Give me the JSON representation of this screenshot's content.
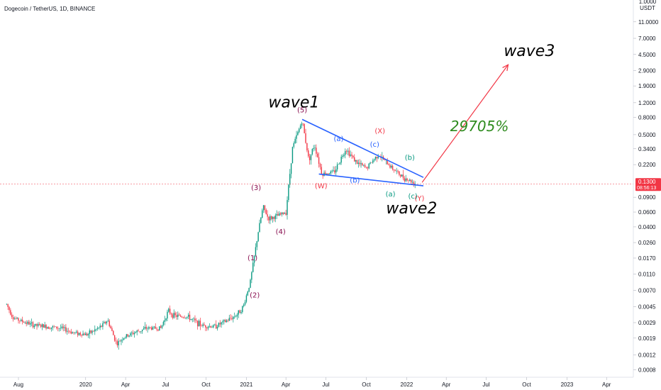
{
  "title": "Dogecoin / TetherUS, 1D, BINANCE",
  "chart_data": {
    "type": "candlestick",
    "title": "Dogecoin / TetherUS, 1D, BINANCE",
    "y_scale": "log",
    "ylim": [
      0.00065,
      20
    ],
    "xlim": [
      "2019-06-20",
      "2023-06-01"
    ],
    "price_axis": {
      "unit_labels": [
        "1.0000",
        "USDT"
      ],
      "ticks": [
        {
          "value": 11.0,
          "label": "11.0000"
        },
        {
          "value": 7.0,
          "label": "7.0000"
        },
        {
          "value": 4.5,
          "label": "4.5000"
        },
        {
          "value": 2.9,
          "label": "2.9000"
        },
        {
          "value": 1.9,
          "label": "1.9000"
        },
        {
          "value": 1.2,
          "label": "1.2000"
        },
        {
          "value": 0.8,
          "label": "0.8000"
        },
        {
          "value": 0.5,
          "label": "0.5000"
        },
        {
          "value": 0.34,
          "label": "0.3400"
        },
        {
          "value": 0.22,
          "label": "0.2200"
        },
        {
          "value": 0.09,
          "label": "0.0900"
        },
        {
          "value": 0.06,
          "label": "0.0600"
        },
        {
          "value": 0.04,
          "label": "0.0400"
        },
        {
          "value": 0.026,
          "label": "0.0260"
        },
        {
          "value": 0.017,
          "label": "0.0170"
        },
        {
          "value": 0.011,
          "label": "0.0110"
        },
        {
          "value": 0.007,
          "label": "0.0070"
        },
        {
          "value": 0.0045,
          "label": "0.0045"
        },
        {
          "value": 0.0029,
          "label": "0.0029"
        },
        {
          "value": 0.0019,
          "label": "0.0019"
        },
        {
          "value": 0.0012,
          "label": "0.0012"
        },
        {
          "value": 0.0008,
          "label": "0.0008"
        }
      ]
    },
    "time_axis": {
      "ticks": [
        {
          "date": "2019-08-01",
          "label": "Aug"
        },
        {
          "date": "2020-01-01",
          "label": "2020"
        },
        {
          "date": "2020-04-01",
          "label": "Apr"
        },
        {
          "date": "2020-07-01",
          "label": "Jul"
        },
        {
          "date": "2020-10-01",
          "label": "Oct"
        },
        {
          "date": "2021-01-01",
          "label": "2021"
        },
        {
          "date": "2021-04-01",
          "label": "Apr"
        },
        {
          "date": "2021-07-01",
          "label": "Jul"
        },
        {
          "date": "2021-10-01",
          "label": "Oct"
        },
        {
          "date": "2022-01-01",
          "label": "2022"
        },
        {
          "date": "2022-04-01",
          "label": "Apr"
        },
        {
          "date": "2022-07-01",
          "label": "Jul"
        },
        {
          "date": "2022-10-01",
          "label": "Oct"
        },
        {
          "date": "2023-01-01",
          "label": "2023"
        },
        {
          "date": "2023-04-01",
          "label": "Apr"
        }
      ]
    },
    "last_price": {
      "value": 0.13,
      "label": "0.1300",
      "countdown": "08:56:13",
      "color": "#f23645"
    },
    "price_path": [
      [
        "2019-07-05",
        0.0048
      ],
      [
        "2019-07-20",
        0.0033
      ],
      [
        "2019-08-10",
        0.003
      ],
      [
        "2019-09-05",
        0.0027
      ],
      [
        "2019-10-05",
        0.0026
      ],
      [
        "2019-11-05",
        0.0025
      ],
      [
        "2019-12-05",
        0.0022
      ],
      [
        "2020-01-05",
        0.0021
      ],
      [
        "2020-02-05",
        0.0026
      ],
      [
        "2020-02-20",
        0.0031
      ],
      [
        "2020-03-12",
        0.0016
      ],
      [
        "2020-03-25",
        0.0019
      ],
      [
        "2020-04-20",
        0.0022
      ],
      [
        "2020-05-20",
        0.0025
      ],
      [
        "2020-06-20",
        0.0025
      ],
      [
        "2020-07-07",
        0.004
      ],
      [
        "2020-07-20",
        0.0035
      ],
      [
        "2020-08-20",
        0.0034
      ],
      [
        "2020-09-20",
        0.0027
      ],
      [
        "2020-10-20",
        0.0026
      ],
      [
        "2020-11-15",
        0.003
      ],
      [
        "2020-12-10",
        0.0036
      ],
      [
        "2020-12-25",
        0.0045
      ],
      [
        "2021-01-10",
        0.009
      ],
      [
        "2021-01-28",
        0.035
      ],
      [
        "2021-02-08",
        0.07
      ],
      [
        "2021-02-20",
        0.05
      ],
      [
        "2021-03-10",
        0.053
      ],
      [
        "2021-04-01",
        0.06
      ],
      [
        "2021-04-16",
        0.35
      ],
      [
        "2021-05-08",
        0.74
      ],
      [
        "2021-05-23",
        0.25
      ],
      [
        "2021-06-05",
        0.38
      ],
      [
        "2021-06-22",
        0.17
      ],
      [
        "2021-07-20",
        0.18
      ],
      [
        "2021-08-15",
        0.34
      ],
      [
        "2021-09-10",
        0.23
      ],
      [
        "2021-10-01",
        0.2
      ],
      [
        "2021-10-28",
        0.29
      ],
      [
        "2021-11-25",
        0.21
      ],
      [
        "2021-12-20",
        0.16
      ],
      [
        "2022-01-10",
        0.14
      ],
      [
        "2022-01-22",
        0.13
      ]
    ],
    "annotations": {
      "wave1": "wave1",
      "wave2": "wave2",
      "wave3": "wave3",
      "percent": "29705%",
      "wave_numbers": [
        {
          "text": "(1)",
          "date": "2021-01-15",
          "price": 0.016,
          "color": "#880e4f"
        },
        {
          "text": "(2)",
          "date": "2021-01-20",
          "price": 0.0058,
          "color": "#880e4f"
        },
        {
          "text": "(3)",
          "date": "2021-01-23",
          "price": 0.11,
          "color": "#880e4f"
        },
        {
          "text": "(4)",
          "date": "2021-03-20",
          "price": 0.033,
          "color": "#880e4f"
        },
        {
          "text": "(5)",
          "date": "2021-05-08",
          "price": 0.92,
          "color": "#880e4f"
        }
      ],
      "sub_waves": [
        {
          "text": "(a)",
          "date": "2021-07-30",
          "price": 0.42,
          "color": "#2962ff"
        },
        {
          "text": "(b)",
          "date": "2021-09-05",
          "price": 0.135,
          "color": "#2962ff"
        },
        {
          "text": "(c)",
          "date": "2021-10-20",
          "price": 0.36,
          "color": "#2962ff"
        },
        {
          "text": "(W)",
          "date": "2021-06-20",
          "price": 0.115,
          "color": "#f23645"
        },
        {
          "text": "(X)",
          "date": "2021-11-01",
          "price": 0.52,
          "color": "#f23645"
        },
        {
          "text": "(Y)",
          "date": "2022-01-30",
          "price": 0.082,
          "color": "#f23645"
        },
        {
          "text": "(a)",
          "date": "2021-11-25",
          "price": 0.092,
          "color": "#089981"
        },
        {
          "text": "(b)",
          "date": "2022-01-08",
          "price": 0.25,
          "color": "#089981"
        },
        {
          "text": "(c)",
          "date": "2022-01-15",
          "price": 0.087,
          "color": "#089981"
        }
      ]
    },
    "colors": {
      "up": "#089981",
      "down": "#f23645",
      "trendline": "#2962ff",
      "projection": "#f23645",
      "axis_line": "#e0e3eb"
    }
  }
}
